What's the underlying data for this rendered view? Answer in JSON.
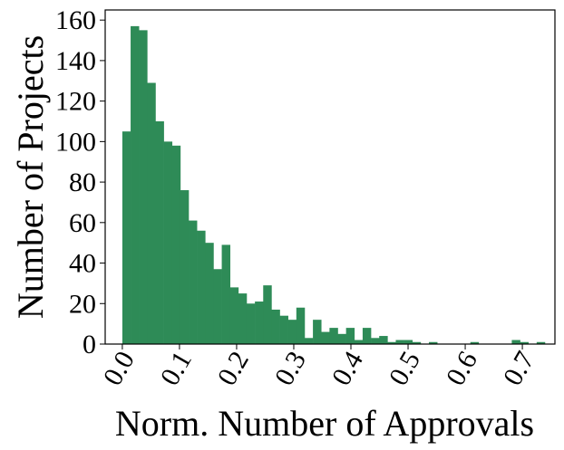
{
  "chart_data": {
    "type": "bar",
    "subtype": "histogram",
    "title": "",
    "xlabel": "Norm. Number of Approvals",
    "ylabel": "Number of Projects",
    "xlim": [
      -0.03,
      0.757
    ],
    "ylim": [
      0,
      165
    ],
    "grid": false,
    "bar_color": "#2e8b57",
    "bin_width": 0.0145,
    "bin_start": 0.0,
    "counts": [
      105,
      157,
      155,
      129,
      110,
      100,
      98,
      76,
      61,
      56,
      50,
      37,
      49,
      28,
      25,
      20,
      21,
      29,
      17,
      14,
      12,
      18,
      3,
      12,
      6,
      8,
      5,
      8,
      2,
      8,
      3,
      4,
      1,
      2,
      2,
      1,
      0,
      1,
      0,
      0,
      0,
      0,
      1,
      0,
      0,
      0,
      0,
      2,
      1,
      0,
      1
    ],
    "x_ticks": [
      0.0,
      0.1,
      0.2,
      0.3,
      0.4,
      0.5,
      0.6,
      0.7
    ],
    "x_tick_labels": [
      "0.0",
      "0.1",
      "0.2",
      "0.3",
      "0.4",
      "0.5",
      "0.6",
      "0.7"
    ],
    "y_ticks": [
      0,
      20,
      40,
      60,
      80,
      100,
      120,
      140,
      160
    ],
    "y_tick_labels": [
      "0",
      "20",
      "40",
      "60",
      "80",
      "100",
      "120",
      "140",
      "160"
    ]
  }
}
